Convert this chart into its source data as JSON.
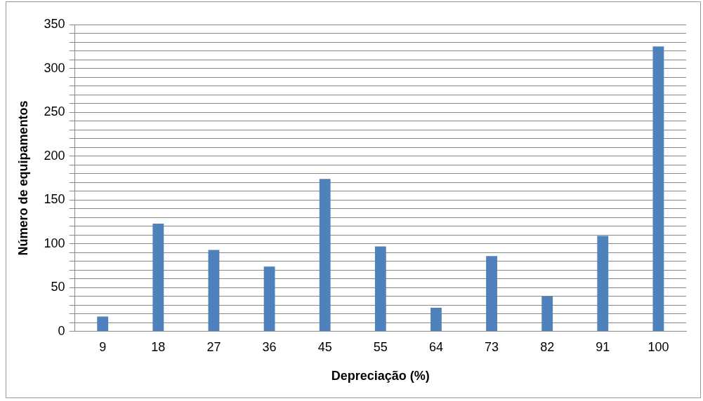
{
  "chart_data": {
    "type": "bar",
    "xlabel": "Depreciação (%)",
    "ylabel": "Número de equipamentos",
    "categories": [
      "9",
      "18",
      "27",
      "36",
      "45",
      "55",
      "64",
      "73",
      "82",
      "91",
      "100"
    ],
    "values": [
      17,
      123,
      93,
      74,
      174,
      97,
      27,
      86,
      40,
      109,
      325
    ],
    "color": "#4f81bd",
    "ylim": [
      0,
      350
    ],
    "yticks": [
      0,
      {
        "value": 10,
        "label": null
      },
      {
        "value": 20,
        "label": null
      },
      {
        "value": 30,
        "label": null
      },
      {
        "value": 40,
        "label": null
      },
      50,
      {
        "value": 60,
        "label": null
      },
      {
        "value": 70,
        "label": null
      },
      {
        "value": 80,
        "label": null
      },
      {
        "value": 90,
        "label": null
      },
      100,
      {
        "value": 110,
        "label": null
      },
      {
        "value": 120,
        "label": null
      },
      {
        "value": 130,
        "label": null
      },
      {
        "value": 140,
        "label": null
      },
      150,
      {
        "value": 160,
        "label": null
      },
      {
        "value": 170,
        "label": null
      },
      {
        "value": 180,
        "label": null
      },
      {
        "value": 190,
        "label": null
      },
      200,
      {
        "value": 210,
        "label": null
      },
      {
        "value": 220,
        "label": null
      },
      {
        "value": 230,
        "label": null
      },
      {
        "value": 240,
        "label": null
      },
      250,
      {
        "value": 260,
        "label": null
      },
      {
        "value": 270,
        "label": null
      },
      {
        "value": 280,
        "label": null
      },
      {
        "value": 290,
        "label": null
      },
      300,
      {
        "value": 310,
        "label": null
      },
      {
        "value": 320,
        "label": null
      },
      {
        "value": 330,
        "label": null
      },
      {
        "value": 340,
        "label": null
      },
      350
    ],
    "grid": "y",
    "legend": false
  }
}
